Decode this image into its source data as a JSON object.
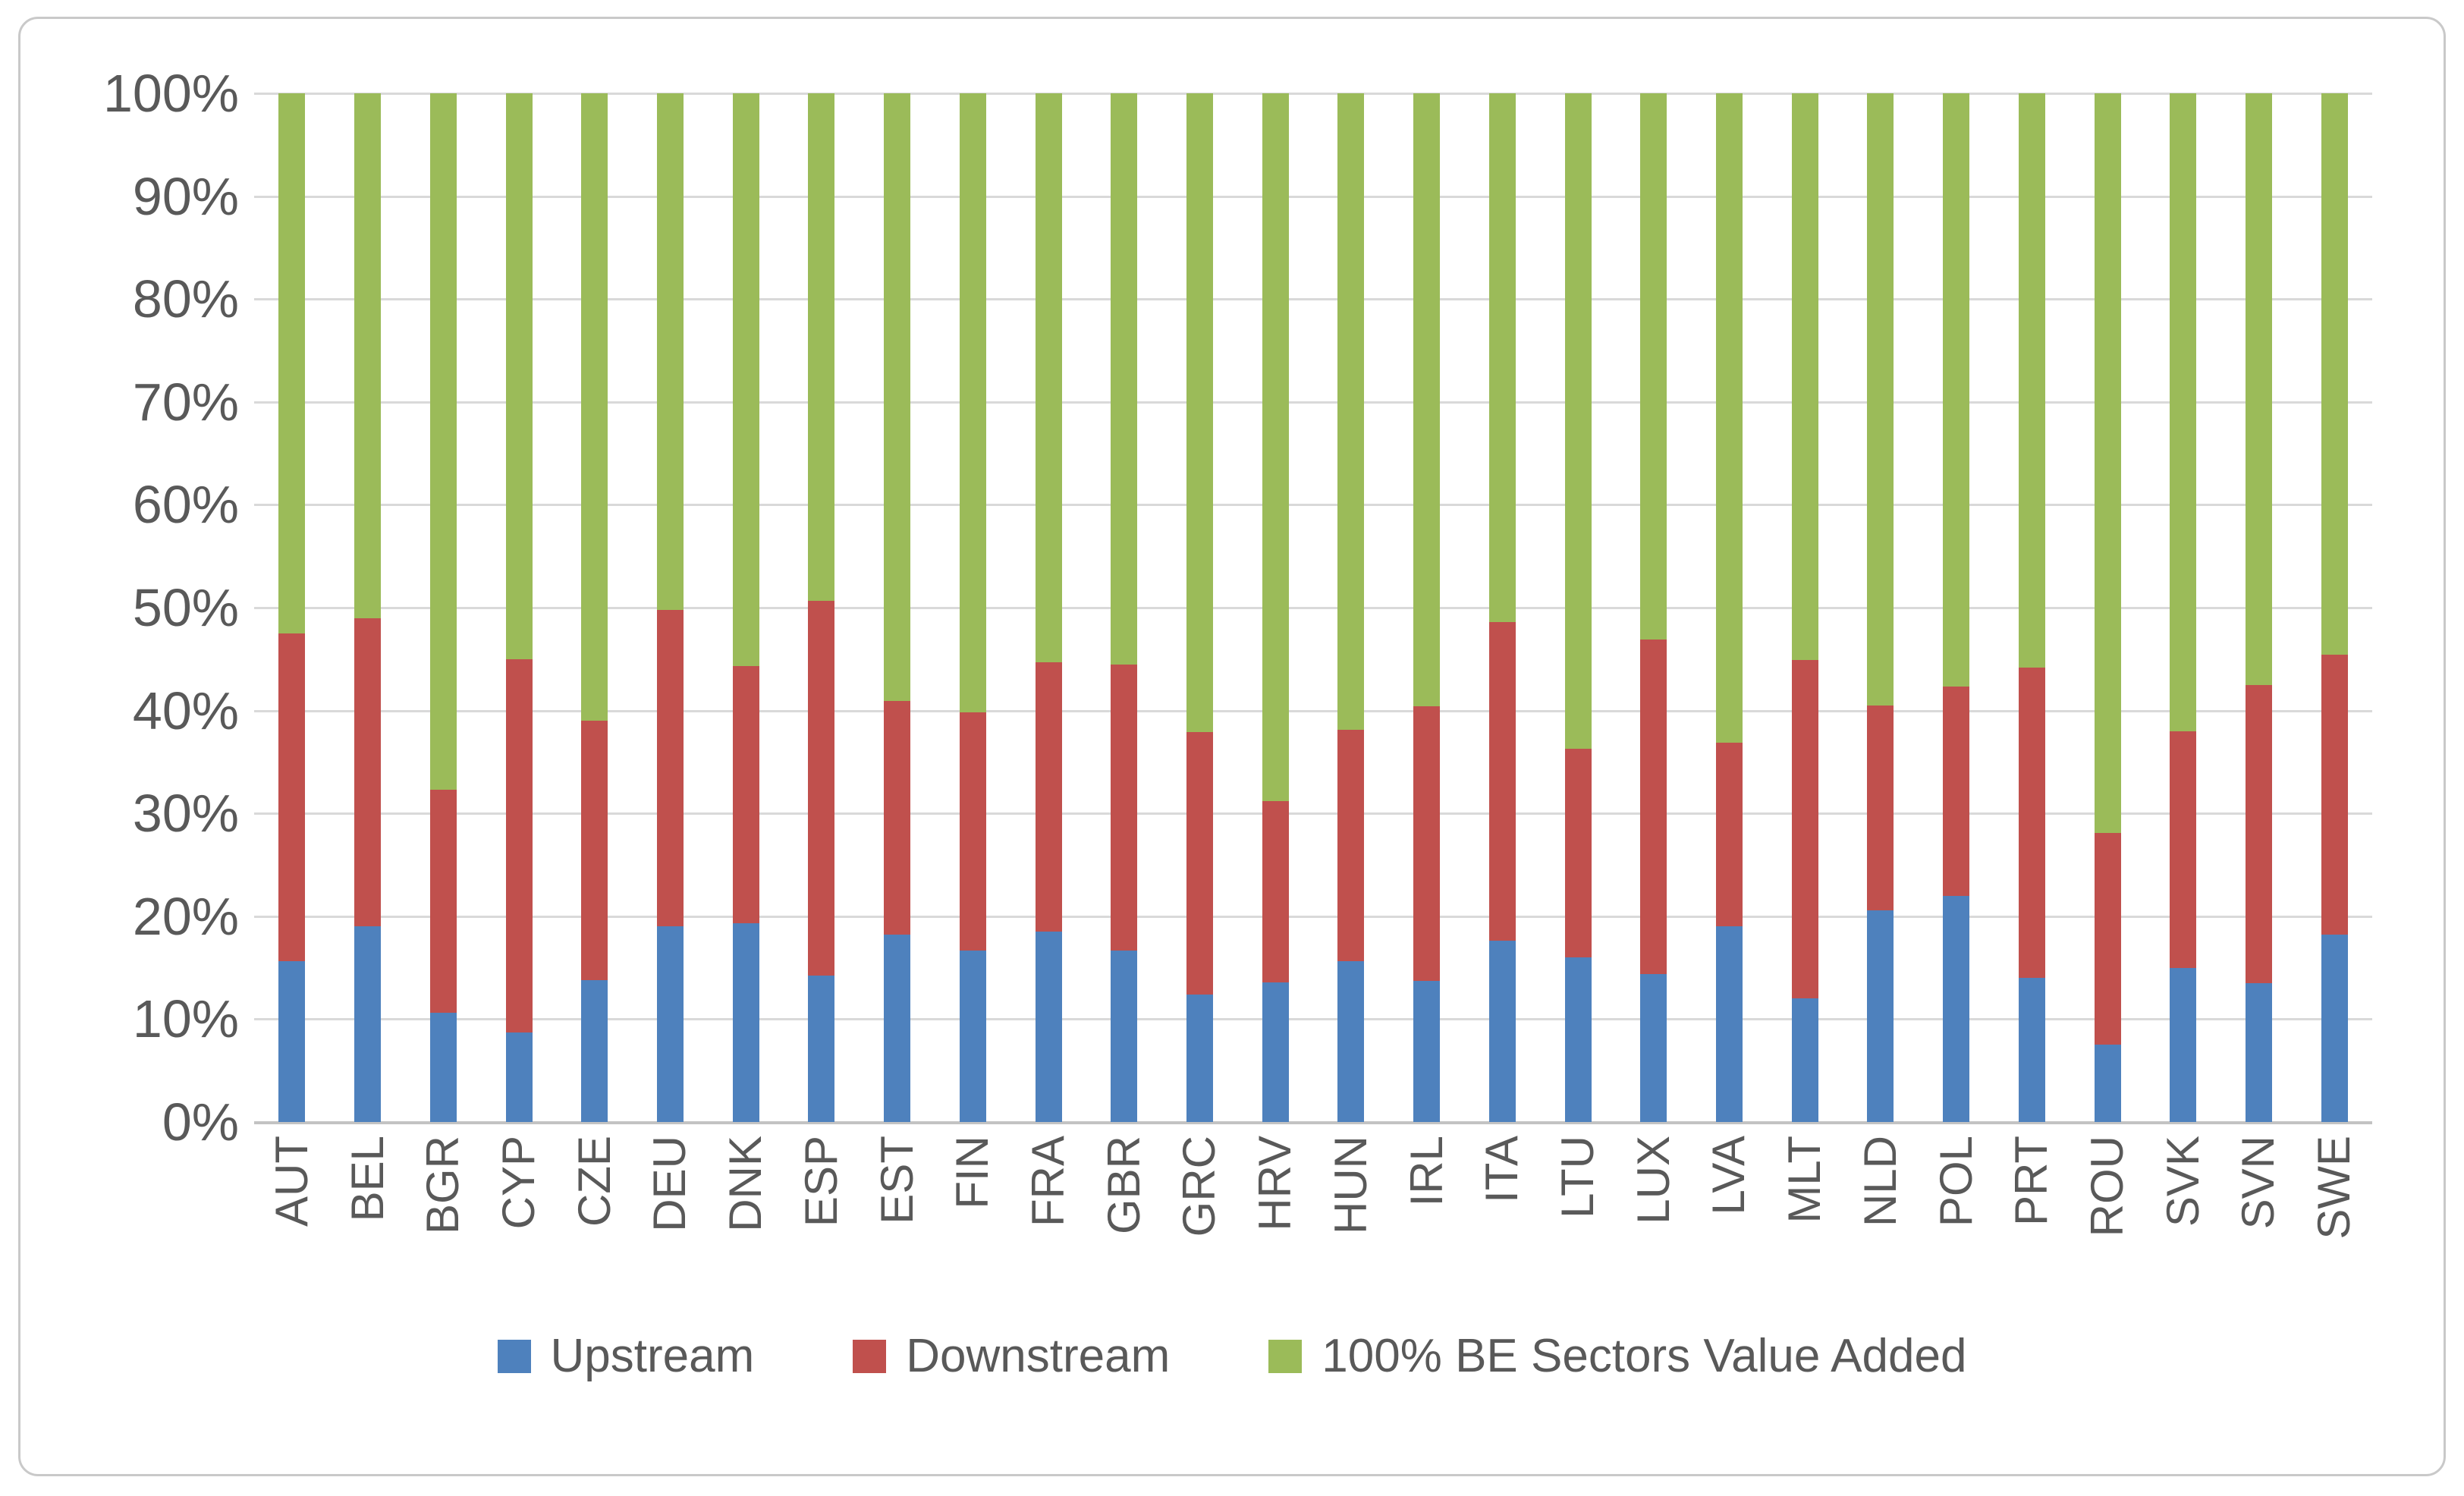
{
  "chart_data": {
    "type": "bar",
    "subtype": "stacked-100",
    "title": "",
    "xlabel": "",
    "ylabel": "",
    "grid": true,
    "legend_position": "bottom",
    "y_axis": {
      "min": 0,
      "max": 100,
      "tick_step": 10,
      "tick_labels": [
        "0%",
        "10%",
        "20%",
        "30%",
        "40%",
        "50%",
        "60%",
        "70%",
        "80%",
        "90%",
        "100%"
      ]
    },
    "categories": [
      "AUT",
      "BEL",
      "BGR",
      "CYP",
      "CZE",
      "DEU",
      "DNK",
      "ESP",
      "EST",
      "FIN",
      "FRA",
      "GBR",
      "GRC",
      "HRV",
      "HUN",
      "IRL",
      "ITA",
      "LTU",
      "LUX",
      "LVA",
      "MLT",
      "NLD",
      "POL",
      "PRT",
      "ROU",
      "SVK",
      "SVN",
      "SWE"
    ],
    "series": [
      {
        "name": "Upstream",
        "color": "#4E81BD",
        "values": [
          15.6,
          19.0,
          10.6,
          8.7,
          13.8,
          19.0,
          19.3,
          14.2,
          18.2,
          16.7,
          18.5,
          16.7,
          12.4,
          13.6,
          15.6,
          13.7,
          17.6,
          16.0,
          14.4,
          19.0,
          12.0,
          20.6,
          22.0,
          14.0,
          7.5,
          15.0,
          13.5,
          18.2
        ]
      },
      {
        "name": "Downstream",
        "color": "#C0504D",
        "values": [
          31.9,
          30.0,
          21.7,
          36.3,
          25.2,
          30.8,
          25.0,
          36.5,
          22.7,
          23.1,
          26.2,
          27.8,
          25.5,
          17.6,
          22.5,
          26.7,
          31.0,
          20.3,
          32.5,
          17.9,
          32.9,
          19.9,
          20.3,
          30.2,
          20.6,
          23.0,
          29.0,
          27.2
        ]
      },
      {
        "name": "100% BE Sectors Value Added",
        "color": "#9BBB59",
        "values": [
          52.5,
          51.0,
          67.7,
          55.0,
          61.0,
          50.2,
          55.7,
          49.3,
          59.1,
          60.2,
          55.3,
          55.5,
          62.1,
          68.8,
          61.9,
          59.6,
          51.4,
          63.7,
          53.1,
          63.1,
          55.1,
          59.5,
          57.7,
          55.8,
          71.9,
          62.0,
          57.5,
          54.6
        ]
      }
    ]
  },
  "legend": {
    "items": [
      {
        "label": "Upstream",
        "color": "#4E81BD"
      },
      {
        "label": "Downstream",
        "color": "#C0504D"
      },
      {
        "label": "100% BE Sectors Value Added",
        "color": "#9BBB59"
      }
    ]
  },
  "colors": {
    "gridline": "#D9D9D9",
    "axis_line": "#C3C3C3",
    "tick_text": "#595959",
    "frame_border": "#C9C9C9",
    "background": "#FFFFFF"
  }
}
